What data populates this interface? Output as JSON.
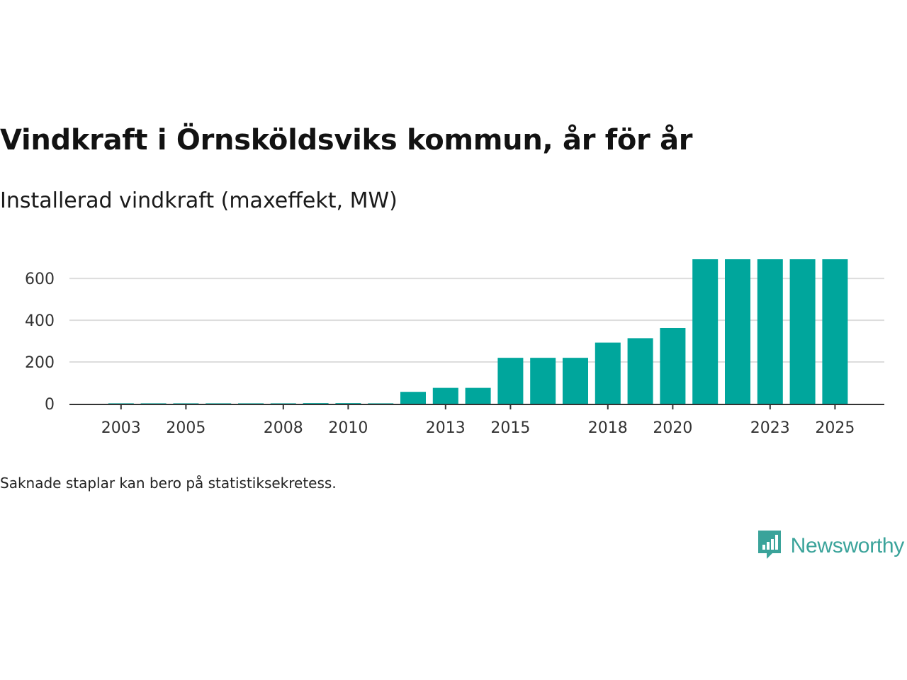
{
  "title": "Vindkraft i Örnsköldsviks kommun, år för år",
  "subtitle": "Installerad vindkraft (maxeffekt, MW)",
  "note": "Saknade staplar kan bero på statistiksekretess.",
  "brand": {
    "name": "Newsworthy",
    "icon": "bar-chart-speech-bubble-icon",
    "color": "#3aa39a"
  },
  "colors": {
    "bar": "#00a69c",
    "grid": "#dddddd",
    "axis": "#333333",
    "tick_text": "#333333"
  },
  "chart_data": {
    "type": "bar",
    "title": "Vindkraft i Örnsköldsviks kommun, år för år",
    "subtitle": "Installerad vindkraft (maxeffekt, MW)",
    "xlabel": "",
    "ylabel": "",
    "categories": [
      "2002",
      "2003",
      "2004",
      "2005",
      "2006",
      "2007",
      "2008",
      "2009",
      "2010",
      "2011",
      "2012",
      "2013",
      "2014",
      "2015",
      "2016",
      "2017",
      "2018",
      "2019",
      "2020",
      "2021",
      "2022",
      "2023",
      "2024",
      "2025"
    ],
    "values": [
      0,
      2,
      2,
      2,
      2,
      2,
      2,
      3,
      3,
      2,
      57,
      76,
      76,
      220,
      220,
      220,
      293,
      314,
      363,
      692,
      692,
      692,
      692,
      692
    ],
    "x_tick_labels": [
      "2003",
      "2005",
      "2008",
      "2010",
      "2013",
      "2015",
      "2018",
      "2020",
      "2023",
      "2025"
    ],
    "y_ticks": [
      0,
      200,
      400,
      600
    ],
    "ylim": [
      0,
      692
    ],
    "grid": true,
    "legend": "none"
  }
}
